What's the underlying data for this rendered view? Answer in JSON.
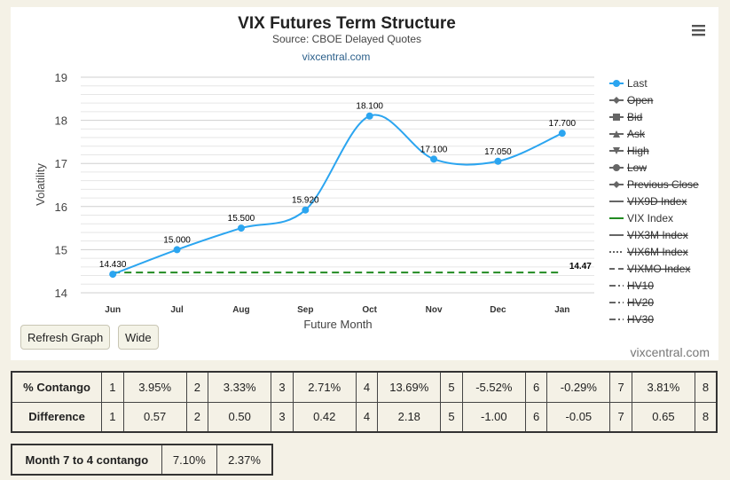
{
  "chart": {
    "title": "VIX Futures Term Structure",
    "subtitle": "Source: CBOE Delayed Quotes",
    "link": "vixcentral.com",
    "credits": "vixcentral.com",
    "menu_icon": "hamburger-icon"
  },
  "chart_data": {
    "type": "line",
    "title": "VIX Futures Term Structure",
    "subtitle": "Source: CBOE Delayed Quotes",
    "xlabel": "Future Month",
    "ylabel": "Volatility",
    "categories": [
      "Jun",
      "Jul",
      "Aug",
      "Sep",
      "Oct",
      "Nov",
      "Dec",
      "Jan"
    ],
    "ylim": [
      14,
      19
    ],
    "yticks": [
      "14",
      "15",
      "16",
      "17",
      "18",
      "19"
    ],
    "grid": true,
    "legend_position": "right",
    "series": [
      {
        "name": "Last",
        "values": [
          14.43,
          15.0,
          15.5,
          15.92,
          18.1,
          17.1,
          17.05,
          17.7
        ],
        "labels": [
          "14.430",
          "15.000",
          "15.500",
          "15.920",
          "18.100",
          "17.100",
          "17.050",
          "17.700"
        ],
        "color": "#2ba5f0"
      },
      {
        "name": "VIX Index",
        "value": 14.47,
        "label": "14.47",
        "color": "#228b22",
        "style": "dashed"
      }
    ],
    "legend": [
      {
        "name": "Last",
        "symbol": "circle-line",
        "hidden": false,
        "color": "#2ba5f0"
      },
      {
        "name": "Open",
        "symbol": "diamond-line",
        "hidden": true
      },
      {
        "name": "Bid",
        "symbol": "square-line",
        "hidden": true
      },
      {
        "name": "Ask",
        "symbol": "triangle-line",
        "hidden": true
      },
      {
        "name": "High",
        "symbol": "triangle-down-line",
        "hidden": true
      },
      {
        "name": "Low",
        "symbol": "circle-line",
        "hidden": true
      },
      {
        "name": "Previous Close",
        "symbol": "diamond-line",
        "hidden": true
      },
      {
        "name": "VIX9D Index",
        "symbol": "solid",
        "hidden": true
      },
      {
        "name": "VIX Index",
        "symbol": "solid",
        "hidden": false,
        "color": "#228b22"
      },
      {
        "name": "VIX3M Index",
        "symbol": "solid",
        "hidden": true
      },
      {
        "name": "VIX6M Index",
        "symbol": "dotted",
        "hidden": true
      },
      {
        "name": "VIXMO Index",
        "symbol": "dashed",
        "hidden": true
      },
      {
        "name": "HV10",
        "symbol": "dash-dot",
        "hidden": true
      },
      {
        "name": "HV20",
        "symbol": "dash-dot",
        "hidden": true
      },
      {
        "name": "HV30",
        "symbol": "dash-dot",
        "hidden": true
      }
    ]
  },
  "buttons": {
    "refresh": "Refresh Graph",
    "wide": "Wide"
  },
  "contango_table": {
    "rows": [
      {
        "label": "% Contango",
        "cells": [
          [
            "1",
            "3.95%"
          ],
          [
            "2",
            "3.33%"
          ],
          [
            "3",
            "2.71%"
          ],
          [
            "4",
            "13.69%"
          ],
          [
            "5",
            "-5.52%"
          ],
          [
            "6",
            "-0.29%"
          ],
          [
            "7",
            "3.81%"
          ],
          [
            "8",
            ""
          ]
        ]
      },
      {
        "label": "Difference",
        "cells": [
          [
            "1",
            "0.57"
          ],
          [
            "2",
            "0.50"
          ],
          [
            "3",
            "0.42"
          ],
          [
            "4",
            "2.18"
          ],
          [
            "5",
            "-1.00"
          ],
          [
            "6",
            "-0.05"
          ],
          [
            "7",
            "0.65"
          ],
          [
            "8",
            ""
          ]
        ]
      }
    ]
  },
  "month_table": {
    "label": "Month 7 to 4 contango",
    "values": [
      "7.10%",
      "2.37%"
    ]
  }
}
